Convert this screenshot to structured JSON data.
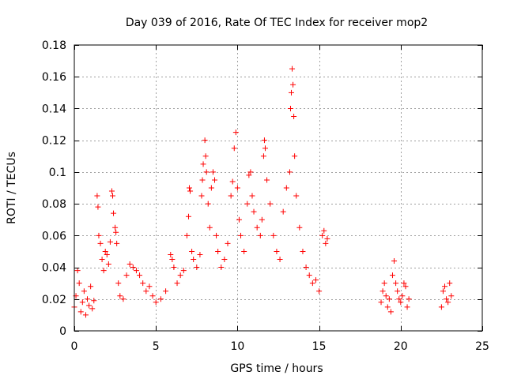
{
  "chart_data": {
    "type": "scatter",
    "title": "Day 039 of 2016, Rate Of TEC Index for receiver mop2",
    "xlabel": "GPS time / hours",
    "ylabel": "ROTI / TECUs",
    "xlim": [
      0,
      25
    ],
    "ylim": [
      0,
      0.18
    ],
    "x_ticks": [
      0,
      5,
      10,
      15,
      20,
      25
    ],
    "x_tick_labels": [
      "0",
      "5",
      "10",
      "15",
      "20",
      "25"
    ],
    "y_ticks": [
      0,
      0.02,
      0.04,
      0.06,
      0.08,
      0.1,
      0.12,
      0.14,
      0.16,
      0.18
    ],
    "y_tick_labels": [
      "0",
      "0.02",
      "0.04",
      "0.06",
      "0.08",
      "0.1",
      "0.12",
      "0.14",
      "0.16",
      "0.18"
    ],
    "grid": true,
    "marker": "+",
    "series": [
      {
        "name": "ROTI",
        "color": "#ff0000",
        "points": [
          [
            0.0,
            0.015
          ],
          [
            0.1,
            0.022
          ],
          [
            0.2,
            0.038
          ],
          [
            0.3,
            0.03
          ],
          [
            0.4,
            0.012
          ],
          [
            0.5,
            0.018
          ],
          [
            0.6,
            0.025
          ],
          [
            0.7,
            0.01
          ],
          [
            0.8,
            0.02
          ],
          [
            0.9,
            0.016
          ],
          [
            1.0,
            0.028
          ],
          [
            1.1,
            0.014
          ],
          [
            1.2,
            0.019
          ],
          [
            1.4,
            0.085
          ],
          [
            1.45,
            0.078
          ],
          [
            1.5,
            0.06
          ],
          [
            1.6,
            0.055
          ],
          [
            1.7,
            0.045
          ],
          [
            1.8,
            0.038
          ],
          [
            1.9,
            0.05
          ],
          [
            2.0,
            0.048
          ],
          [
            2.1,
            0.042
          ],
          [
            2.2,
            0.056
          ],
          [
            2.3,
            0.088
          ],
          [
            2.35,
            0.085
          ],
          [
            2.4,
            0.074
          ],
          [
            2.5,
            0.065
          ],
          [
            2.55,
            0.062
          ],
          [
            2.6,
            0.055
          ],
          [
            2.7,
            0.03
          ],
          [
            2.8,
            0.022
          ],
          [
            3.0,
            0.02
          ],
          [
            3.2,
            0.035
          ],
          [
            3.4,
            0.042
          ],
          [
            3.6,
            0.04
          ],
          [
            3.8,
            0.038
          ],
          [
            4.0,
            0.035
          ],
          [
            4.2,
            0.03
          ],
          [
            4.4,
            0.025
          ],
          [
            4.6,
            0.028
          ],
          [
            4.8,
            0.022
          ],
          [
            5.0,
            0.018
          ],
          [
            5.3,
            0.02
          ],
          [
            5.6,
            0.025
          ],
          [
            5.9,
            0.048
          ],
          [
            6.0,
            0.045
          ],
          [
            6.1,
            0.04
          ],
          [
            6.3,
            0.03
          ],
          [
            6.5,
            0.035
          ],
          [
            6.7,
            0.038
          ],
          [
            6.9,
            0.06
          ],
          [
            7.0,
            0.072
          ],
          [
            7.05,
            0.09
          ],
          [
            7.1,
            0.088
          ],
          [
            7.2,
            0.05
          ],
          [
            7.3,
            0.045
          ],
          [
            7.5,
            0.04
          ],
          [
            7.7,
            0.048
          ],
          [
            7.8,
            0.085
          ],
          [
            7.85,
            0.095
          ],
          [
            7.9,
            0.105
          ],
          [
            8.0,
            0.12
          ],
          [
            8.05,
            0.11
          ],
          [
            8.1,
            0.1
          ],
          [
            8.2,
            0.08
          ],
          [
            8.3,
            0.065
          ],
          [
            8.4,
            0.09
          ],
          [
            8.5,
            0.1
          ],
          [
            8.6,
            0.095
          ],
          [
            8.7,
            0.06
          ],
          [
            8.8,
            0.05
          ],
          [
            9.0,
            0.04
          ],
          [
            9.2,
            0.045
          ],
          [
            9.4,
            0.055
          ],
          [
            9.6,
            0.085
          ],
          [
            9.7,
            0.094
          ],
          [
            9.8,
            0.115
          ],
          [
            9.9,
            0.125
          ],
          [
            10.0,
            0.09
          ],
          [
            10.1,
            0.07
          ],
          [
            10.2,
            0.06
          ],
          [
            10.4,
            0.05
          ],
          [
            10.6,
            0.08
          ],
          [
            10.7,
            0.098
          ],
          [
            10.8,
            0.1
          ],
          [
            10.9,
            0.085
          ],
          [
            11.0,
            0.075
          ],
          [
            11.2,
            0.065
          ],
          [
            11.4,
            0.06
          ],
          [
            11.5,
            0.07
          ],
          [
            11.6,
            0.11
          ],
          [
            11.65,
            0.12
          ],
          [
            11.7,
            0.115
          ],
          [
            11.8,
            0.095
          ],
          [
            12.0,
            0.08
          ],
          [
            12.2,
            0.06
          ],
          [
            12.4,
            0.05
          ],
          [
            12.6,
            0.045
          ],
          [
            12.8,
            0.075
          ],
          [
            13.0,
            0.09
          ],
          [
            13.2,
            0.1
          ],
          [
            13.25,
            0.14
          ],
          [
            13.3,
            0.15
          ],
          [
            13.35,
            0.165
          ],
          [
            13.4,
            0.155
          ],
          [
            13.45,
            0.135
          ],
          [
            13.5,
            0.11
          ],
          [
            13.6,
            0.085
          ],
          [
            13.8,
            0.065
          ],
          [
            14.0,
            0.05
          ],
          [
            14.2,
            0.04
          ],
          [
            14.4,
            0.035
          ],
          [
            14.6,
            0.03
          ],
          [
            14.8,
            0.032
          ],
          [
            15.0,
            0.025
          ],
          [
            15.2,
            0.06
          ],
          [
            15.3,
            0.063
          ],
          [
            15.4,
            0.055
          ],
          [
            15.5,
            0.058
          ],
          [
            18.8,
            0.018
          ],
          [
            18.9,
            0.025
          ],
          [
            19.0,
            0.03
          ],
          [
            19.1,
            0.022
          ],
          [
            19.2,
            0.015
          ],
          [
            19.3,
            0.02
          ],
          [
            19.4,
            0.012
          ],
          [
            19.5,
            0.035
          ],
          [
            19.6,
            0.044
          ],
          [
            19.7,
            0.03
          ],
          [
            19.8,
            0.025
          ],
          [
            19.9,
            0.02
          ],
          [
            20.0,
            0.018
          ],
          [
            20.1,
            0.022
          ],
          [
            20.2,
            0.03
          ],
          [
            20.3,
            0.028
          ],
          [
            20.4,
            0.015
          ],
          [
            20.5,
            0.02
          ],
          [
            22.5,
            0.015
          ],
          [
            22.6,
            0.025
          ],
          [
            22.7,
            0.028
          ],
          [
            22.8,
            0.02
          ],
          [
            22.9,
            0.018
          ],
          [
            23.0,
            0.03
          ],
          [
            23.1,
            0.022
          ]
        ]
      }
    ]
  }
}
